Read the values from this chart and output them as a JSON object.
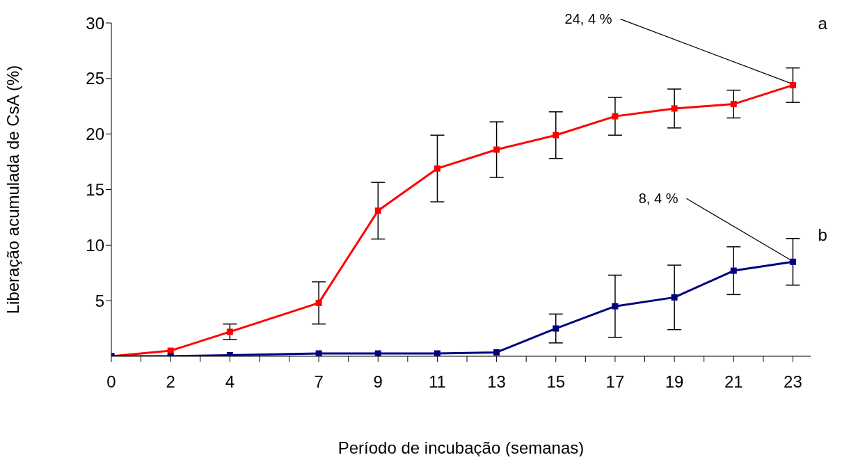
{
  "chart_data": {
    "type": "line",
    "xlabel": "Período de incubação (semanas)",
    "ylabel": "Liberação acumulada de CsA (%)",
    "x": [
      0,
      2,
      4,
      7,
      9,
      11,
      13,
      15,
      17,
      19,
      21,
      23
    ],
    "xlim": [
      0,
      23.6
    ],
    "xticks": [
      0,
      {
        "value": 1,
        "label": null
      },
      2,
      {
        "value": 3,
        "label": null
      },
      4,
      {
        "value": 5,
        "label": null
      },
      {
        "value": 6,
        "label": null
      },
      7,
      {
        "value": 8,
        "label": null
      },
      9,
      {
        "value": 10,
        "label": null
      },
      11,
      {
        "value": 12,
        "label": null
      },
      13,
      {
        "value": 14,
        "label": null
      },
      15,
      {
        "value": 16,
        "label": null
      },
      17,
      {
        "value": 18,
        "label": null
      },
      19,
      {
        "value": 20,
        "label": null
      },
      21,
      {
        "value": 22,
        "label": null
      },
      23
    ],
    "ylim": [
      0,
      30
    ],
    "yticks": [
      5,
      10,
      15,
      20,
      25,
      30
    ],
    "grid": false,
    "legend": false,
    "marker": "square",
    "line_style": "solid",
    "series": [
      {
        "name": "a",
        "color": "#ff0000",
        "values": [
          0,
          0.5,
          2.2,
          4.8,
          13.1,
          16.9,
          18.6,
          19.9,
          21.6,
          22.3,
          22.7,
          24.4
        ],
        "errors": [
          null,
          null,
          0.7,
          1.9,
          2.55,
          3,
          2.5,
          2.1,
          1.7,
          1.75,
          1.25,
          1.55
        ]
      },
      {
        "name": "b",
        "color": "#000080",
        "values": [
          0,
          0,
          0.1,
          0.25,
          0.25,
          0.25,
          0.35,
          2.5,
          4.5,
          5.3,
          7.7,
          8.5
        ],
        "errors": [
          null,
          null,
          null,
          null,
          null,
          null,
          null,
          1.3,
          2.8,
          2.9,
          2.15,
          2.1
        ]
      }
    ],
    "annotations": [
      {
        "text": "24, 4 %",
        "x": 23,
        "y": 24.4
      },
      {
        "text": "8, 4 %",
        "x": 23,
        "y": 8.5
      }
    ]
  }
}
